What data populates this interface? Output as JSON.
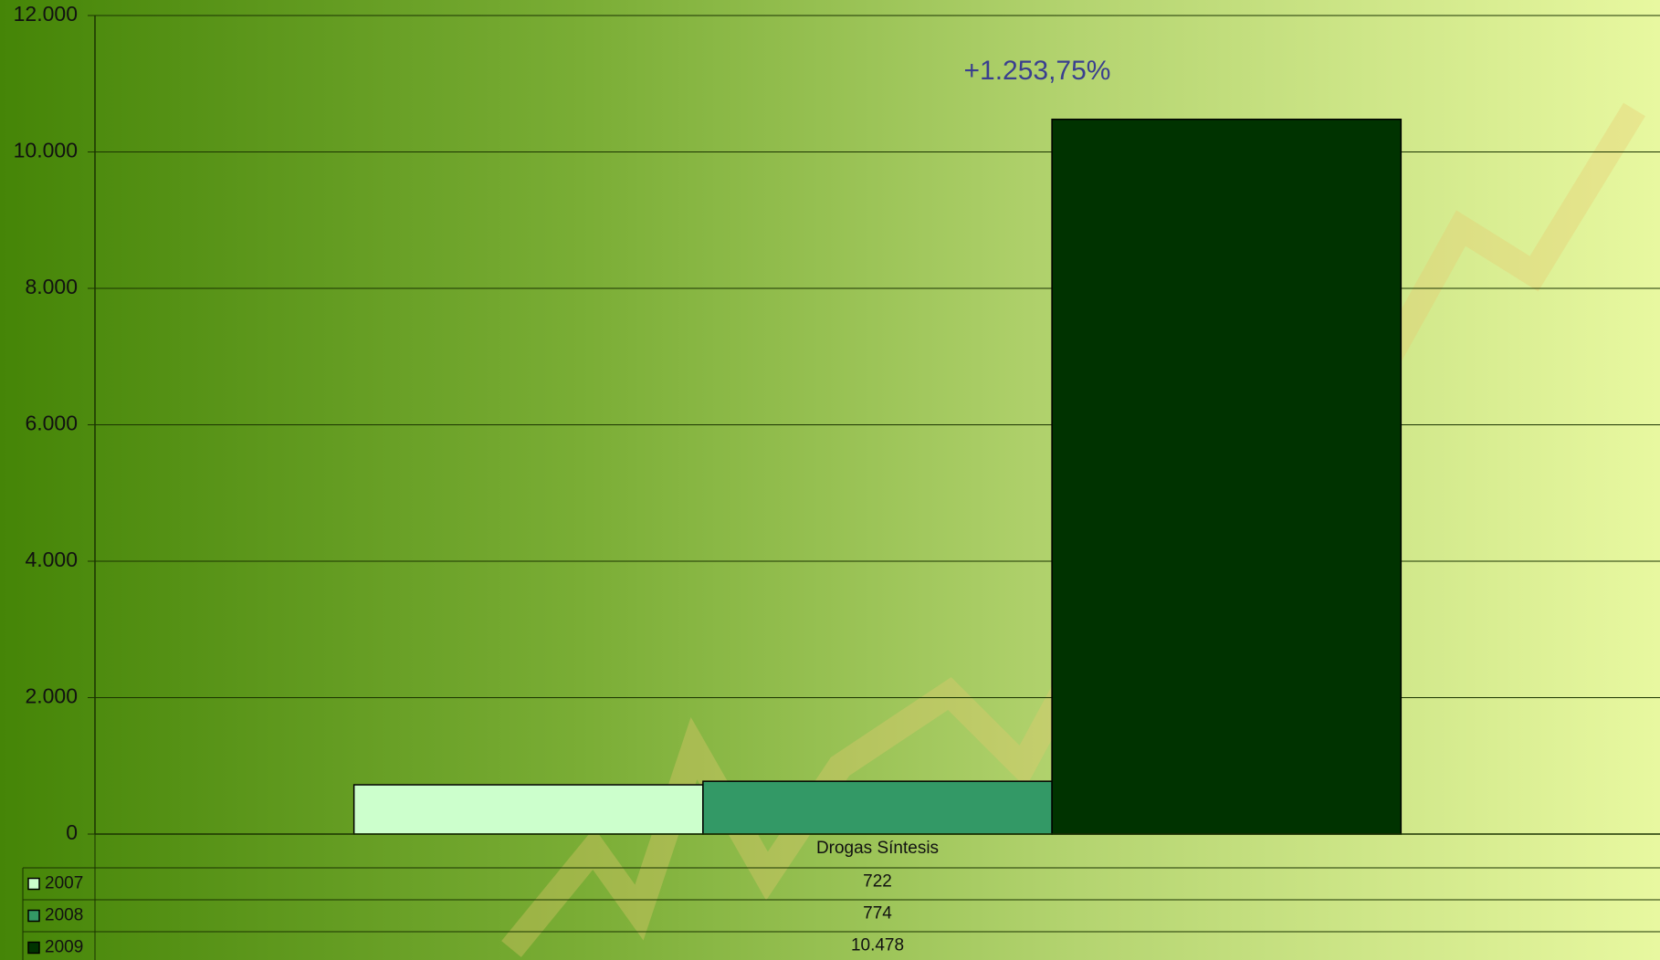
{
  "chart_data": {
    "type": "bar",
    "annotation": "+1.253,75%",
    "categories": [
      "Drogas Síntesis"
    ],
    "series": [
      {
        "name": "2007",
        "color": "#ccffcc",
        "values": [
          722
        ],
        "value_labels": [
          "722"
        ]
      },
      {
        "name": "2008",
        "color": "#339966",
        "values": [
          774
        ],
        "value_labels": [
          "774"
        ]
      },
      {
        "name": "2009",
        "color": "#003300",
        "values": [
          10478
        ],
        "value_labels": [
          "10.478"
        ]
      }
    ],
    "ylim": [
      0,
      12000
    ],
    "yticks": [
      0,
      {
        "value": 2000,
        "label": "2.000"
      },
      {
        "value": 4000,
        "label": "4.000"
      },
      {
        "value": 6000,
        "label": "6.000"
      },
      {
        "value": 8000,
        "label": "8.000"
      },
      {
        "value": 10000,
        "label": "10.000"
      },
      {
        "value": 12000,
        "label": "12.000"
      }
    ],
    "grid": true,
    "data_table": true
  }
}
